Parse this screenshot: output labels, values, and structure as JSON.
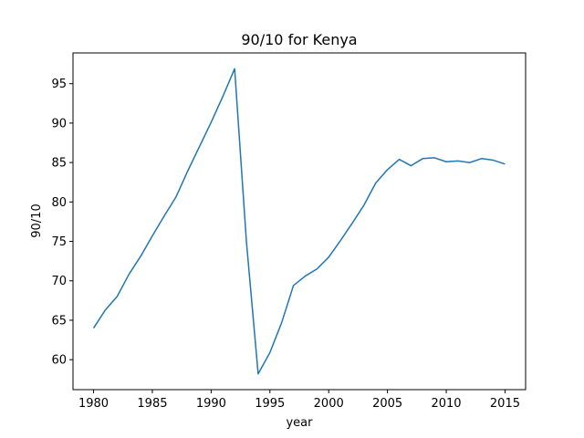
{
  "chart_data": {
    "type": "line",
    "title": "90/10 for Kenya",
    "xlabel": "year",
    "ylabel": "90/10",
    "xlim": [
      1978.25,
      2016.75
    ],
    "ylim": [
      56.2,
      98.9
    ],
    "xticks": [
      1980,
      1985,
      1990,
      1995,
      2000,
      2005,
      2010,
      2015
    ],
    "yticks": [
      60,
      65,
      70,
      75,
      80,
      85,
      90,
      95
    ],
    "grid": false,
    "line_color": "#1f77b4",
    "series": [
      {
        "x": [
          1980,
          1981,
          1982,
          1983,
          1984,
          1985,
          1986,
          1987,
          1988,
          1989,
          1990,
          1991,
          1992,
          1993,
          1994,
          1995,
          1996,
          1997,
          1998,
          1999,
          2000,
          2001,
          2002,
          2003,
          2004,
          2005,
          2006,
          2007,
          2008,
          2009,
          2010,
          2011,
          2012,
          2013,
          2014,
          2015
        ],
        "values": [
          64.0,
          66.3,
          68.0,
          70.8,
          73.1,
          75.7,
          78.2,
          80.6,
          83.9,
          87.0,
          90.1,
          93.4,
          96.9,
          75.0,
          58.2,
          60.9,
          64.7,
          69.4,
          70.6,
          71.5,
          73.0,
          75.1,
          77.3,
          79.6,
          82.4,
          84.1,
          85.4,
          84.6,
          85.5,
          85.6,
          85.1,
          85.2,
          85.0,
          85.5,
          85.3,
          84.8
        ]
      }
    ]
  }
}
